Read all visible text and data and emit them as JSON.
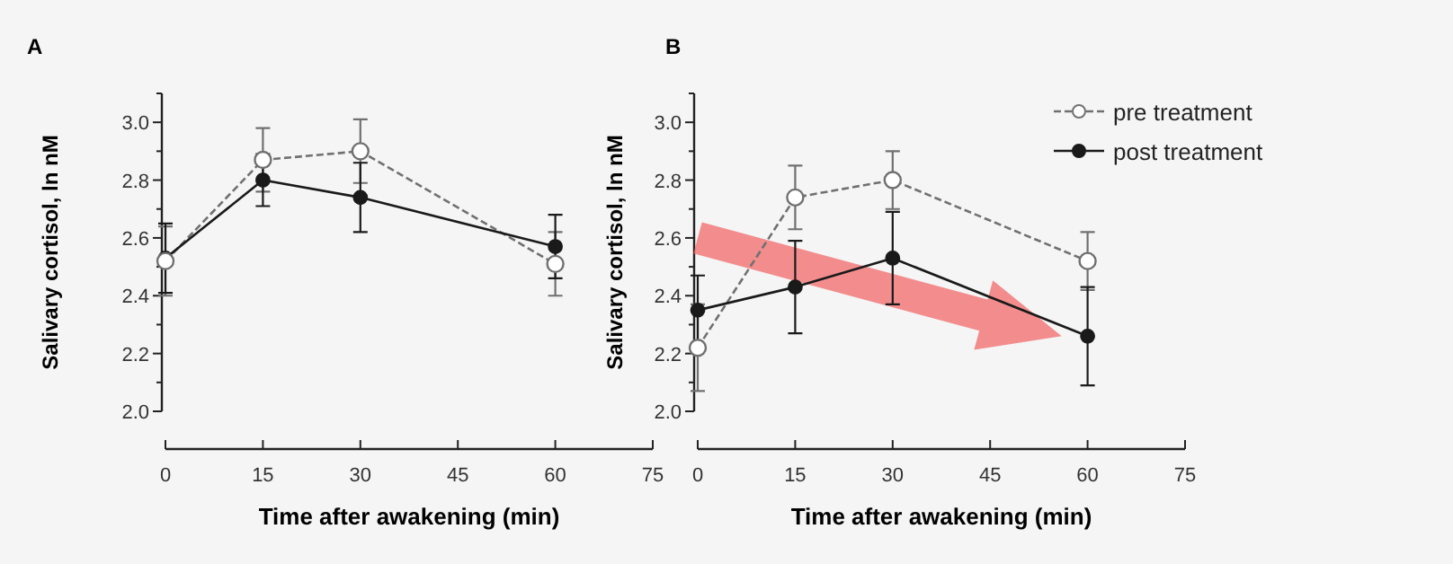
{
  "chart_data": [
    {
      "type": "line",
      "title": "A",
      "xlabel": "Time after awakening (min)",
      "ylabel": "Salivary cortisol, ln nM",
      "x": [
        0,
        15,
        30,
        60
      ],
      "xlim": [
        0,
        75
      ],
      "xticks": [
        0,
        15,
        30,
        45,
        60,
        75
      ],
      "ylim": [
        2.0,
        3.1
      ],
      "yticks": [
        {
          "value": 2,
          "label": "2.0"
        },
        {
          "value": 2.1,
          "label": null
        },
        2.2,
        {
          "value": 2.3,
          "label": null
        },
        2.4,
        {
          "value": 2.5,
          "label": null
        },
        2.6,
        {
          "value": 2.7,
          "label": null
        },
        2.8,
        {
          "value": 2.9,
          "label": null
        },
        {
          "value": 3,
          "label": "3.0"
        },
        {
          "value": 3.1,
          "label": null
        }
      ],
      "marker": "circle",
      "legend": false,
      "grid": false,
      "series": [
        {
          "color": "#707070",
          "line_style": "dashed",
          "values": [
            2.52,
            2.87,
            2.9,
            2.51
          ],
          "errors": [
            0.12,
            0.11,
            0.11,
            0.11
          ]
        },
        {
          "color": "#1a1a1a",
          "line_style": "solid",
          "values": [
            2.53,
            2.8,
            2.74,
            2.57
          ],
          "errors": [
            0.12,
            0.09,
            0.12,
            0.11
          ]
        }
      ]
    },
    {
      "type": "line",
      "title": "B",
      "xlabel": "Time after awakening (min)",
      "ylabel": "Salivary cortisol, ln nM",
      "x": [
        0,
        15,
        30,
        60
      ],
      "xlim": [
        0,
        75
      ],
      "xticks": [
        0,
        15,
        30,
        45,
        60,
        75
      ],
      "ylim": [
        2.0,
        3.1
      ],
      "yticks": [
        {
          "value": 2,
          "label": "2.0"
        },
        {
          "value": 2.1,
          "label": null
        },
        2.2,
        {
          "value": 2.3,
          "label": null
        },
        2.4,
        {
          "value": 2.5,
          "label": null
        },
        2.6,
        {
          "value": 2.7,
          "label": null
        },
        2.8,
        {
          "value": 2.9,
          "label": null
        },
        {
          "value": 3,
          "label": "3.0"
        },
        {
          "value": 3.1,
          "label": null
        }
      ],
      "marker": "circle",
      "legend": "right",
      "grid": false,
      "series": [
        {
          "name": "pre treatment",
          "color": "#707070",
          "line_style": "dashed",
          "values": [
            2.22,
            2.74,
            2.8,
            2.52
          ],
          "errors": [
            0.15,
            0.11,
            0.1,
            0.1
          ]
        },
        {
          "name": "post treatment",
          "color": "#1a1a1a",
          "line_style": "solid",
          "values": [
            2.35,
            2.43,
            2.53,
            2.26
          ],
          "errors": [
            0.12,
            0.16,
            0.16,
            0.17
          ]
        }
      ]
    }
  ]
}
